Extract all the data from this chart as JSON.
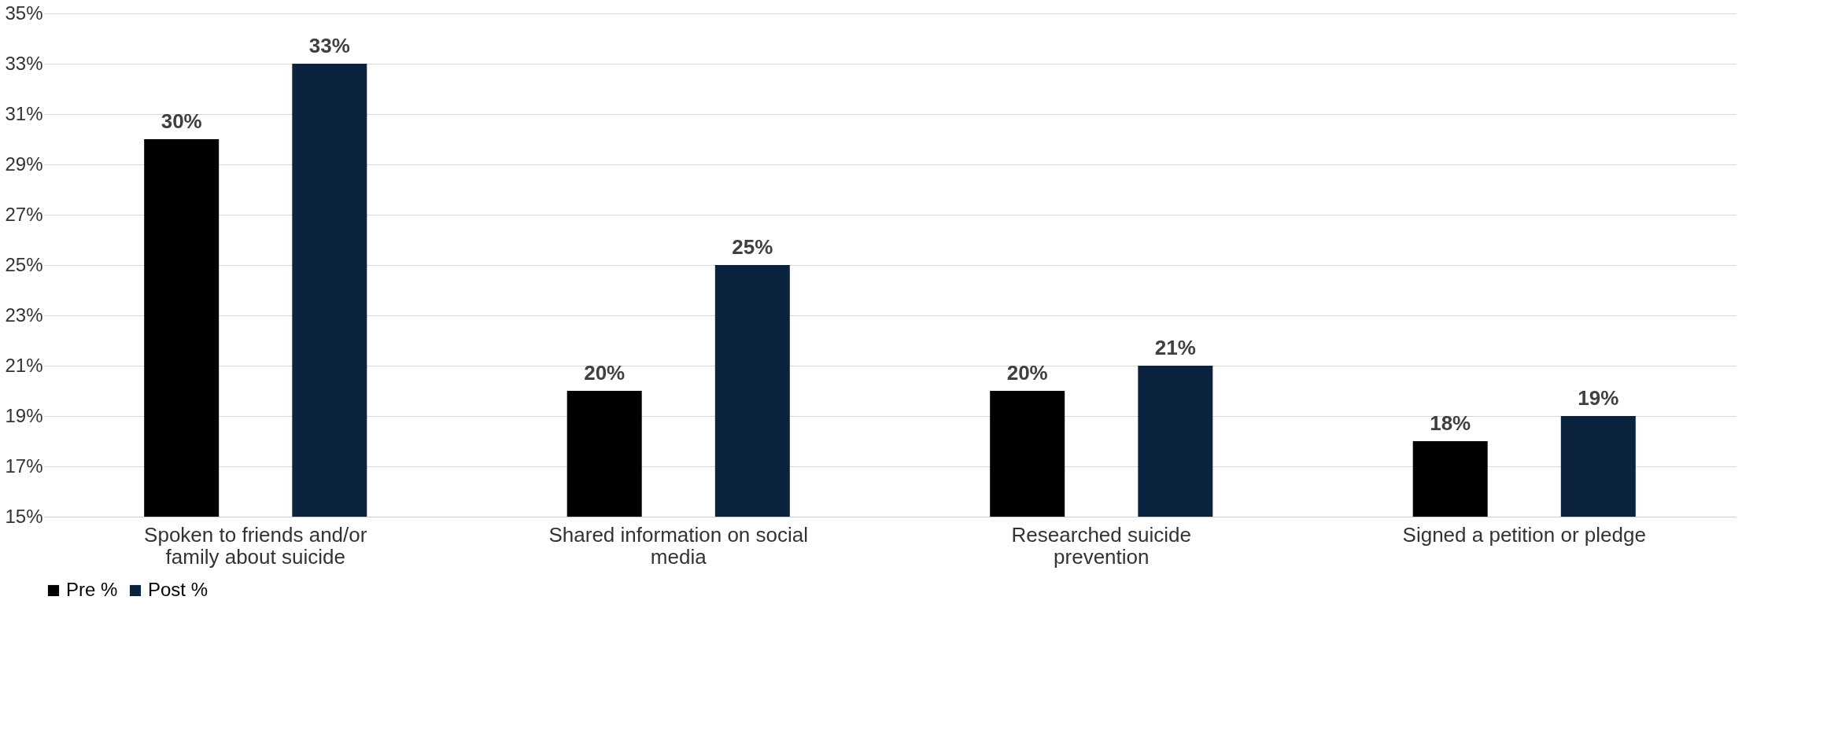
{
  "chart_data": {
    "type": "bar",
    "categories": [
      "Spoken to friends and/or family about suicide",
      "Shared information on social media",
      "Researched suicide prevention",
      "Signed a petition or pledge"
    ],
    "series": [
      {
        "name": "Pre %",
        "color": "#000000",
        "values": [
          30,
          20,
          20,
          18
        ],
        "value_labels": [
          "30%",
          "20%",
          "20%",
          "18%"
        ]
      },
      {
        "name": "Post %",
        "color": "#0c2340",
        "values": [
          33,
          25,
          21,
          19
        ],
        "value_labels": [
          "33%",
          "25%",
          "21%",
          "19%"
        ]
      }
    ],
    "ylim": [
      15,
      35
    ],
    "yticks": [
      {
        "value": 15,
        "label": "15%"
      },
      {
        "value": 17,
        "label": "17%"
      },
      {
        "value": 19,
        "label": "19%"
      },
      {
        "value": 21,
        "label": "21%"
      },
      {
        "value": 23,
        "label": "23%"
      },
      {
        "value": 25,
        "label": "25%"
      },
      {
        "value": 27,
        "label": "27%"
      },
      {
        "value": 29,
        "label": "29%"
      },
      {
        "value": 31,
        "label": "31%"
      },
      {
        "value": 33,
        "label": "33%"
      },
      {
        "value": 35,
        "label": "35%"
      }
    ],
    "grid": "y",
    "legend": "bottom"
  }
}
